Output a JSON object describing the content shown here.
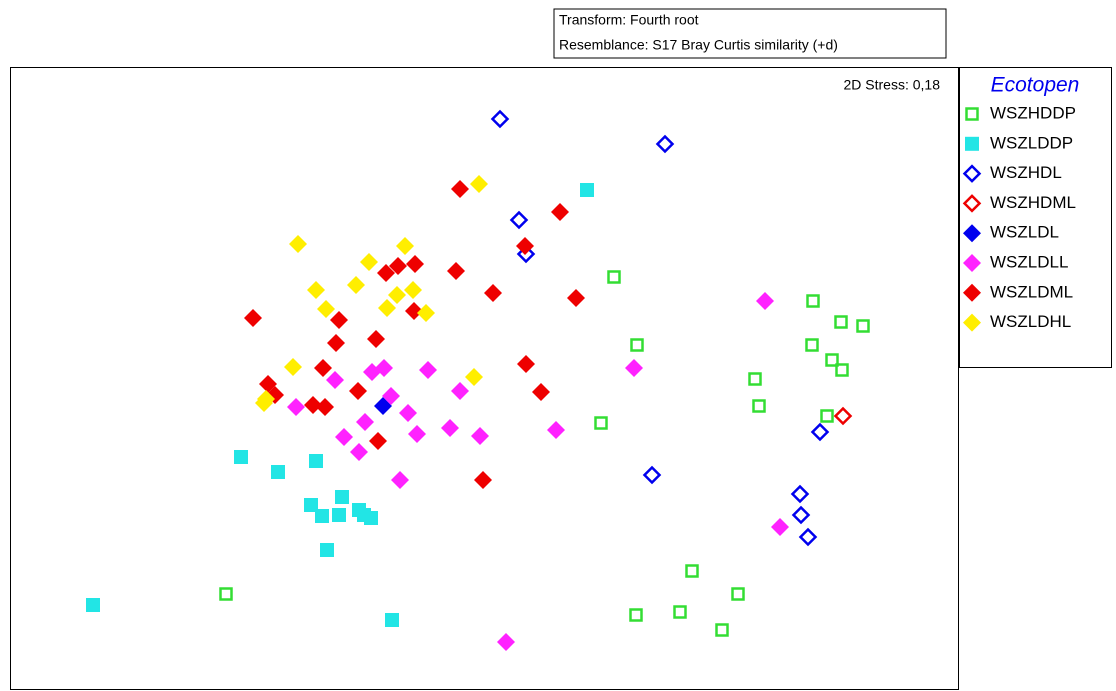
{
  "chart_data": {
    "type": "scatter",
    "transform": "Transform: Fourth root",
    "resemblance": "Resemblance: S17 Bray Curtis similarity (+d)",
    "stress": "2D Stress: 0,18",
    "legend_title": "Ecotopen",
    "legend_position": "right",
    "xlim": [
      0,
      948
    ],
    "ylim": [
      0,
      623
    ],
    "series": [
      {
        "name": "WSZHDDP",
        "color": "#33dd33",
        "marker": "square",
        "filled": false,
        "x": [
          604,
          627,
          745,
          749,
          591,
          803,
          831,
          853,
          802,
          822,
          832,
          817,
          216,
          682,
          728,
          670,
          626,
          712
        ],
        "y": [
          414,
          346,
          312,
          285,
          268,
          390,
          369,
          365,
          346,
          331,
          321,
          275,
          97,
          120,
          97,
          79,
          76,
          61
        ]
      },
      {
        "name": "WSZLDDP",
        "color": "#22e5e5",
        "marker": "square",
        "filled": true,
        "x": [
          577,
          231,
          268,
          306,
          332,
          301,
          312,
          329,
          349,
          354,
          361,
          317,
          83,
          382
        ],
        "y": [
          501,
          234,
          219,
          230,
          194,
          186,
          175,
          176,
          181,
          176,
          173,
          141,
          86,
          71
        ]
      },
      {
        "name": "WSZHDL",
        "color": "#0000ee",
        "marker": "diamond",
        "filled": false,
        "x": [
          490,
          655,
          509,
          516,
          810,
          642,
          790,
          791,
          798
        ],
        "y": [
          572,
          547,
          471,
          437,
          259,
          216,
          197,
          176,
          154
        ]
      },
      {
        "name": "WSZHDML",
        "color": "#ee0000",
        "marker": "diamond",
        "filled": false,
        "x": [
          833
        ],
        "y": [
          275
        ]
      },
      {
        "name": "WSZLDL",
        "color": "#0000ee",
        "marker": "diamond",
        "filled": true,
        "x": [
          373
        ],
        "y": [
          285
        ]
      },
      {
        "name": "WSZLDLL",
        "color": "#ff22ff",
        "marker": "diamond",
        "filled": true,
        "x": [
          755,
          624,
          325,
          362,
          374,
          418,
          450,
          381,
          286,
          398,
          355,
          440,
          407,
          334,
          470,
          546,
          349,
          390,
          770,
          496
        ],
        "y": [
          390,
          323,
          311,
          319,
          323,
          321,
          300,
          295,
          284,
          278,
          269,
          263,
          257,
          254,
          255,
          261,
          239,
          211,
          164,
          49
        ]
      },
      {
        "name": "WSZLDML",
        "color": "#ee0000",
        "marker": "diamond",
        "filled": true,
        "x": [
          450,
          550,
          515,
          376,
          388,
          405,
          446,
          483,
          566,
          243,
          329,
          404,
          366,
          326,
          313,
          516,
          348,
          531,
          258,
          265,
          303,
          315,
          368,
          473
        ],
        "y": [
          502,
          479,
          445,
          418,
          425,
          427,
          420,
          398,
          393,
          373,
          371,
          380,
          352,
          348,
          323,
          327,
          300,
          299,
          307,
          296,
          286,
          284,
          250,
          211
        ]
      },
      {
        "name": "WSZLDHL",
        "color": "#ffee00",
        "marker": "diamond",
        "filled": true,
        "x": [
          469,
          288,
          359,
          395,
          306,
          346,
          387,
          403,
          377,
          316,
          416,
          283,
          464,
          256,
          254
        ],
        "y": [
          507,
          447,
          429,
          445,
          401,
          406,
          396,
          401,
          383,
          382,
          378,
          324,
          314,
          292,
          288
        ]
      }
    ]
  }
}
